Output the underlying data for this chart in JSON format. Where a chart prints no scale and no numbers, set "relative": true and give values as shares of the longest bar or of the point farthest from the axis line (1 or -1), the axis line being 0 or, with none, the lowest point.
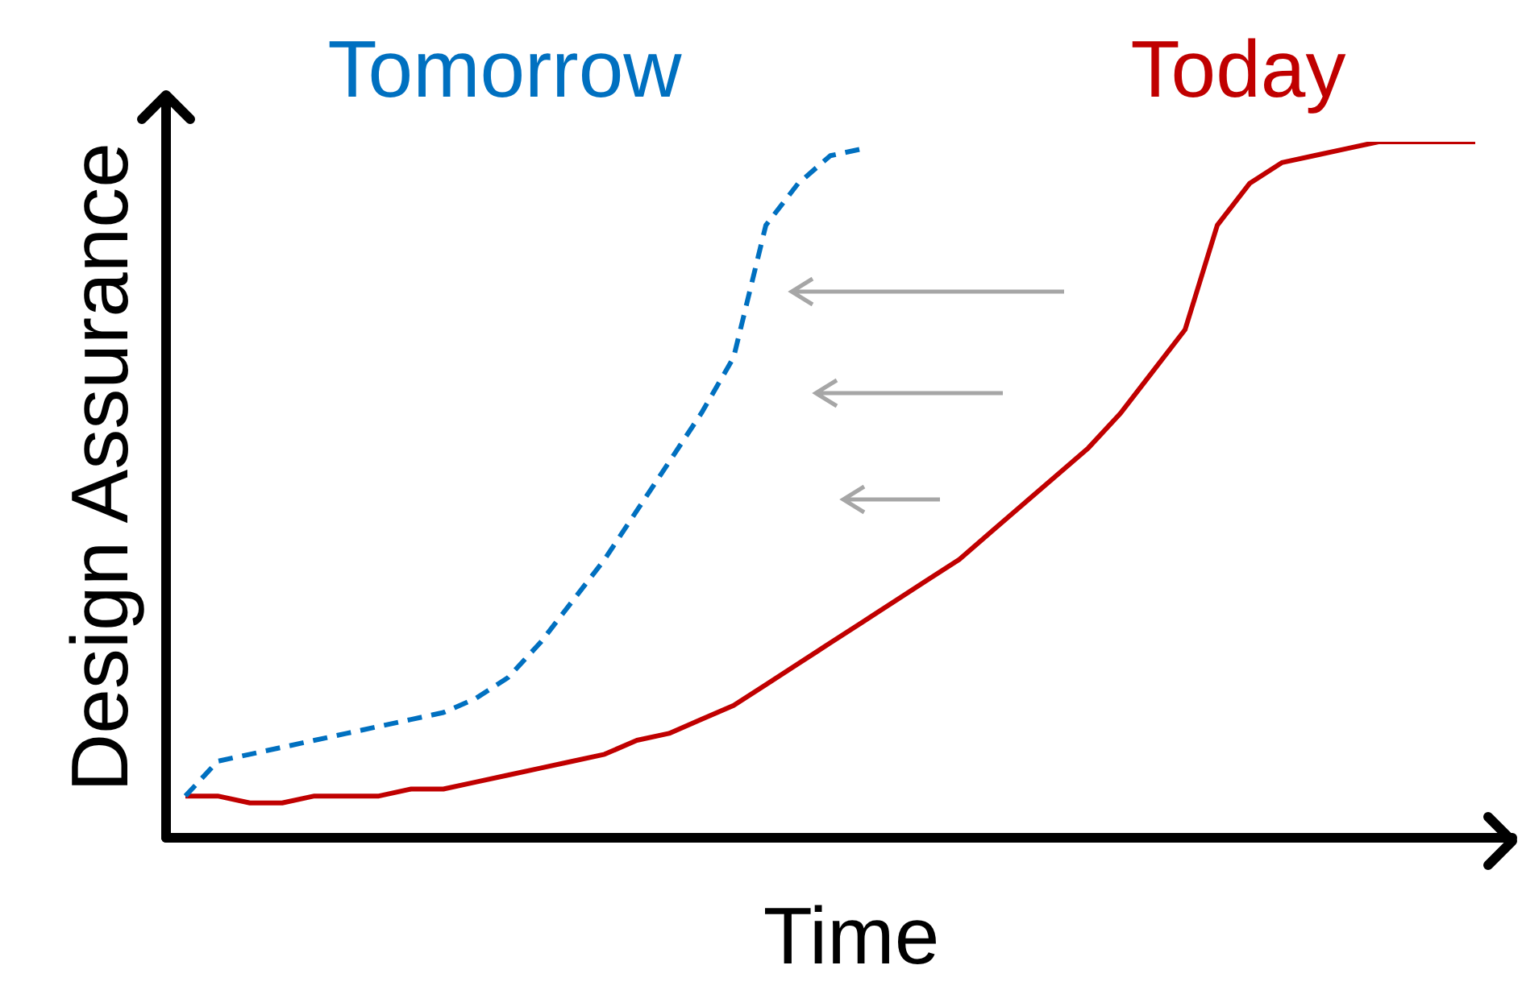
{
  "chart_data": {
    "type": "line",
    "xlabel": "Time",
    "ylabel": "Design Assurance",
    "relative": true,
    "categories": [
      null,
      null,
      null,
      null,
      null,
      null,
      null,
      null,
      null,
      null,
      null,
      null,
      null,
      null,
      null,
      null,
      null,
      null,
      null,
      null,
      null,
      null,
      null,
      null,
      null,
      null,
      null,
      null,
      null,
      null,
      null,
      null,
      null,
      null,
      null,
      null,
      null,
      null,
      null,
      null,
      null
    ],
    "series": [
      {
        "name": "Tomorrow",
        "color": "#0070c0",
        "line_style": "dashed",
        "values": [
          0.06,
          0.11,
          0.12,
          0.13,
          0.14,
          0.15,
          0.16,
          0.17,
          0.18,
          0.2,
          0.23,
          0.28,
          0.34,
          0.4,
          0.47,
          0.54,
          0.61,
          0.69,
          0.88,
          0.94,
          0.98,
          0.99,
          null,
          null,
          null,
          null,
          null,
          null,
          null,
          null,
          null,
          null,
          null,
          null,
          null,
          null,
          null,
          null,
          null,
          null,
          null
        ]
      },
      {
        "name": "Today",
        "color": "#c00000",
        "line_style": "solid",
        "values": [
          0.06,
          0.06,
          0.05,
          0.05,
          0.06,
          0.06,
          0.06,
          0.07,
          0.07,
          0.08,
          0.09,
          0.1,
          0.11,
          0.12,
          0.14,
          0.15,
          0.17,
          0.19,
          0.22,
          0.25,
          0.28,
          0.31,
          0.34,
          0.37,
          0.4,
          0.44,
          0.48,
          0.52,
          0.56,
          0.61,
          0.67,
          0.73,
          0.88,
          0.94,
          0.97,
          0.98,
          0.99,
          1.0,
          1.0,
          1.0,
          1.0
        ]
      }
    ]
  }
}
